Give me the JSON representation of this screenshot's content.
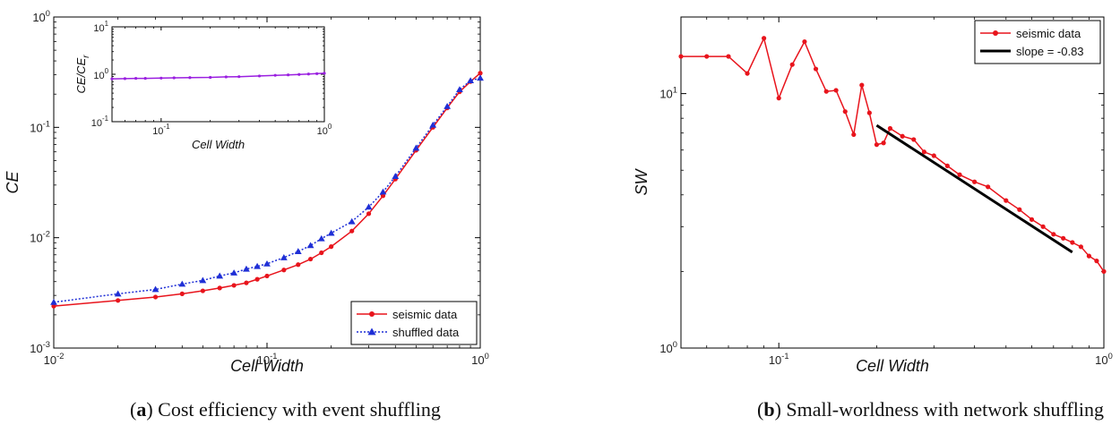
{
  "captions": {
    "a": {
      "letter": "a",
      "text": "Cost efficiency with event shuffling"
    },
    "b": {
      "letter": "b",
      "text": "Small-worldness with network shuffling"
    }
  },
  "chart_data": [
    {
      "id": "a",
      "type": "line",
      "xscale": "log",
      "yscale": "log",
      "xlabel": "Cell Width",
      "ylabel": "CE",
      "xlim": [
        0.01,
        1
      ],
      "ylim": [
        0.001,
        1
      ],
      "xticks": [
        {
          "value": 0.01,
          "base": "10",
          "exp": "-2"
        },
        {
          "value": 0.1,
          "base": "10",
          "exp": "-1"
        },
        {
          "value": 1,
          "base": "10",
          "exp": "0"
        }
      ],
      "yticks": [
        {
          "value": 0.001,
          "base": "10",
          "exp": "-3"
        },
        {
          "value": 0.01,
          "base": "10",
          "exp": "-2"
        },
        {
          "value": 0.1,
          "base": "10",
          "exp": "-1"
        },
        {
          "value": 1,
          "base": "10",
          "exp": "0"
        }
      ],
      "legend_position": "bottom-right",
      "series": [
        {
          "name": "seismic data",
          "color": "#e8141c",
          "marker": "circle",
          "style": "solid",
          "x": [
            0.01,
            0.02,
            0.03,
            0.04,
            0.05,
            0.06,
            0.07,
            0.08,
            0.09,
            0.1,
            0.12,
            0.14,
            0.16,
            0.18,
            0.2,
            0.25,
            0.3,
            0.35,
            0.4,
            0.5,
            0.6,
            0.7,
            0.8,
            0.9,
            1.0
          ],
          "y": [
            0.0024,
            0.0027,
            0.0029,
            0.0031,
            0.0033,
            0.0035,
            0.0037,
            0.0039,
            0.0042,
            0.0045,
            0.0051,
            0.0057,
            0.0064,
            0.0073,
            0.0083,
            0.0115,
            0.0165,
            0.024,
            0.034,
            0.062,
            0.1,
            0.15,
            0.21,
            0.26,
            0.31
          ]
        },
        {
          "name": "shuffled data",
          "color": "#1f2fd6",
          "marker": "triangle",
          "style": "dotted",
          "x": [
            0.01,
            0.02,
            0.03,
            0.04,
            0.05,
            0.06,
            0.07,
            0.08,
            0.09,
            0.1,
            0.12,
            0.14,
            0.16,
            0.18,
            0.2,
            0.25,
            0.3,
            0.35,
            0.4,
            0.5,
            0.6,
            0.7,
            0.8,
            0.9,
            1.0
          ],
          "y": [
            0.0026,
            0.0031,
            0.0034,
            0.0038,
            0.0041,
            0.0045,
            0.0048,
            0.0052,
            0.0055,
            0.0058,
            0.0066,
            0.0075,
            0.0085,
            0.0098,
            0.011,
            0.014,
            0.019,
            0.026,
            0.036,
            0.065,
            0.105,
            0.155,
            0.22,
            0.265,
            0.28
          ]
        }
      ],
      "inset": {
        "xlabel": "Cell Width",
        "ylabel_main": "CE/CE",
        "ylabel_sub": "r",
        "xscale": "log",
        "yscale": "log",
        "xlim": [
          0.05,
          1
        ],
        "ylim": [
          0.1,
          10
        ],
        "xticks": [
          {
            "value": 0.1,
            "base": "10",
            "exp": "-1"
          },
          {
            "value": 1,
            "base": "10",
            "exp": "0"
          }
        ],
        "yticks": [
          {
            "value": 0.1,
            "base": "10",
            "exp": "-1"
          },
          {
            "value": 1,
            "base": "10",
            "exp": "0"
          },
          {
            "value": 10,
            "base": "10",
            "exp": "1"
          }
        ],
        "color": "#9a1fe0",
        "x": [
          0.05,
          0.06,
          0.07,
          0.08,
          0.1,
          0.12,
          0.15,
          0.2,
          0.25,
          0.3,
          0.4,
          0.5,
          0.6,
          0.7,
          0.8,
          0.9,
          1.0
        ],
        "y": [
          0.8,
          0.81,
          0.82,
          0.82,
          0.83,
          0.84,
          0.85,
          0.86,
          0.88,
          0.89,
          0.92,
          0.95,
          0.97,
          0.99,
          1.01,
          1.03,
          1.05
        ]
      }
    },
    {
      "id": "b",
      "type": "line",
      "xscale": "log",
      "yscale": "log",
      "xlabel": "Cell Width",
      "ylabel": "SW",
      "xlim": [
        0.05,
        1
      ],
      "ylim": [
        1,
        20
      ],
      "xticks": [
        {
          "value": 0.1,
          "base": "10",
          "exp": "-1"
        },
        {
          "value": 1,
          "base": "10",
          "exp": "0"
        }
      ],
      "yticks": [
        {
          "value": 1,
          "base": "10",
          "exp": "0"
        },
        {
          "value": 10,
          "base": "10",
          "exp": "1"
        }
      ],
      "legend_position": "top-right",
      "series": [
        {
          "name": "seismic data",
          "color": "#e8141c",
          "marker": "circle",
          "style": "solid",
          "x": [
            0.05,
            0.06,
            0.07,
            0.08,
            0.09,
            0.1,
            0.11,
            0.12,
            0.13,
            0.14,
            0.15,
            0.16,
            0.17,
            0.18,
            0.19,
            0.2,
            0.21,
            0.22,
            0.24,
            0.26,
            0.28,
            0.3,
            0.33,
            0.36,
            0.4,
            0.44,
            0.5,
            0.55,
            0.6,
            0.65,
            0.7,
            0.75,
            0.8,
            0.85,
            0.9,
            0.95,
            1.0
          ],
          "y": [
            14.0,
            14.0,
            14.0,
            12.0,
            16.5,
            9.6,
            13.0,
            16.0,
            12.5,
            10.2,
            10.3,
            8.5,
            6.9,
            10.8,
            8.4,
            6.3,
            6.4,
            7.3,
            6.8,
            6.6,
            5.9,
            5.7,
            5.2,
            4.8,
            4.5,
            4.3,
            3.8,
            3.5,
            3.2,
            3.0,
            2.8,
            2.7,
            2.6,
            2.5,
            2.3,
            2.2,
            2.0
          ]
        },
        {
          "name": "slope = -0.83",
          "color": "#000000",
          "marker": "none",
          "style": "solid",
          "x": [
            0.2,
            0.8
          ],
          "y": [
            7.5,
            2.38
          ]
        }
      ]
    }
  ]
}
